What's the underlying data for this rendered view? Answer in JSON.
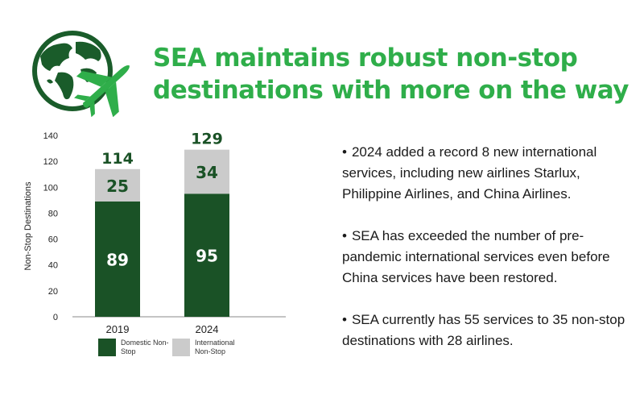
{
  "header": {
    "title_line1": "SEA maintains robust non-stop",
    "title_line2": "destinations with more on the way"
  },
  "icons": {
    "logo": "globe-with-airplane-icon",
    "accent_color": "#2fae4a",
    "dark_green": "#1a5c2a"
  },
  "chart_data": {
    "type": "bar",
    "stacked": true,
    "categories": [
      "2019",
      "2024"
    ],
    "series": [
      {
        "name": "Domestic Non-Stop",
        "values": [
          89,
          95
        ],
        "color": "#1a5226"
      },
      {
        "name": "International Non-Stop",
        "values": [
          25,
          34
        ],
        "color": "#cbcbcb"
      }
    ],
    "totals": [
      114,
      129
    ],
    "ylabel": "Non-Stop Destinations",
    "ylim": [
      0,
      140
    ],
    "yticks": [
      0,
      20,
      40,
      60,
      80,
      100,
      120,
      140
    ],
    "legend_position": "bottom"
  },
  "legend": {
    "domestic_label": "Domestic Non-Stop",
    "international_label": "International Non-Stop"
  },
  "bullets": [
    "2024 added a record 8 new international services, including new airlines Starlux, Philippine Airlines, and China Airlines.",
    "SEA has exceeded the number of pre-pandemic international services even before China services have been restored.",
    "SEA currently has 55 services to 35 non-stop destinations with 28 airlines."
  ],
  "bullet_symbol": "•"
}
